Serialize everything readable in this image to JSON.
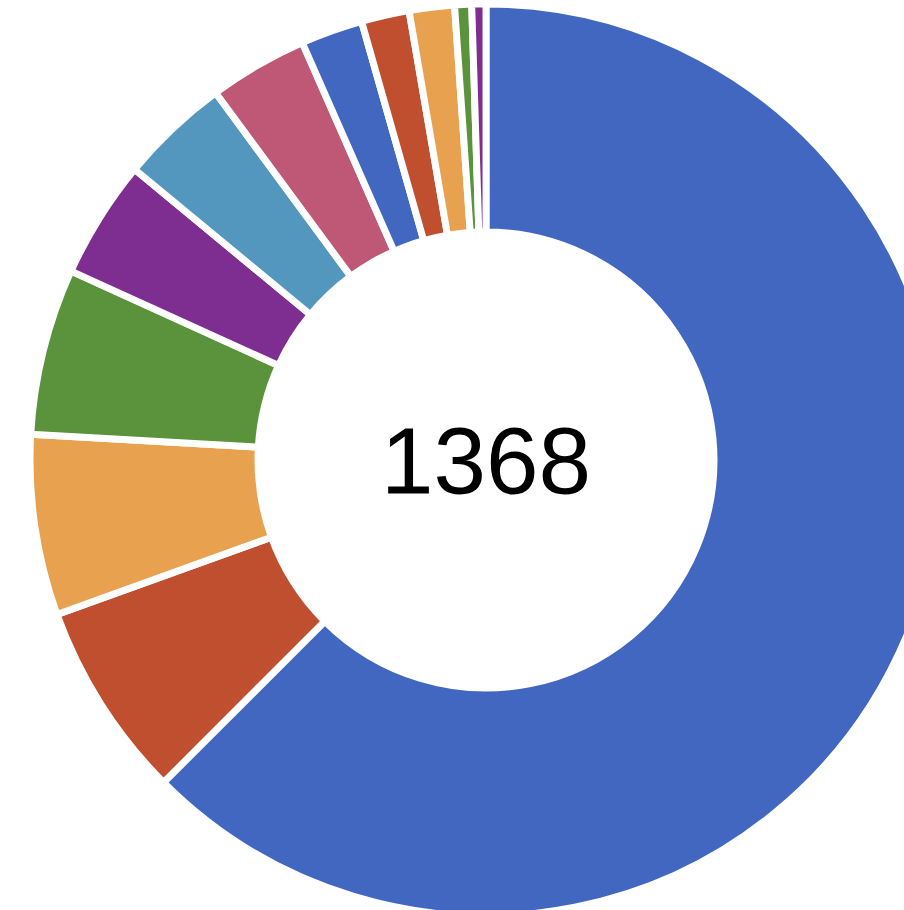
{
  "chart_data": {
    "type": "donut",
    "categories": [
      null,
      null,
      null,
      null,
      null,
      null,
      null,
      null,
      null,
      null,
      null,
      null
    ],
    "values": [
      62.5,
      7.0,
      6.4,
      5.9,
      4.2,
      3.9,
      3.5,
      2.2,
      1.7,
      1.6,
      0.6,
      0.5
    ],
    "colors": [
      "#4267c1",
      "#bf4f2f",
      "#e8a24f",
      "#5a933b",
      "#7e2e91",
      "#5396be",
      "#bf5777",
      "#4267c1",
      "#bf4f2f",
      "#e8a24f",
      "#5a933b",
      "#7e2e91"
    ],
    "annotations": [
      "1368"
    ]
  }
}
